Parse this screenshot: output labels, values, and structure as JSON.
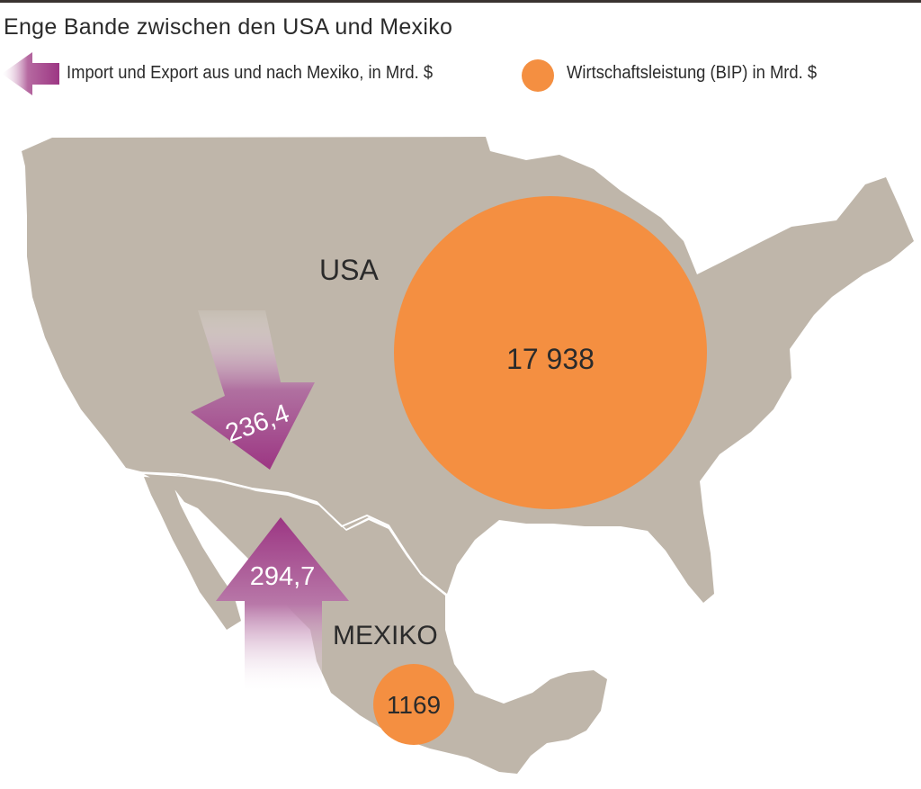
{
  "title": "Enge Bande zwischen den USA und Mexiko",
  "legend": {
    "trade_label": "Import und Export aus und nach Mexiko, in Mrd. $",
    "gdp_label": "Wirtschaftsleistung (BIP) in Mrd. $"
  },
  "countries": {
    "usa": {
      "name": "USA",
      "gdp": "17 938",
      "trade_flow": "236,4"
    },
    "mexico": {
      "name": "MEXIKO",
      "gdp": "1169",
      "trade_flow": "294,7"
    }
  },
  "colors": {
    "land": "#bfb6aa",
    "gdp_circle": "#f48f41",
    "trade_arrow": "#9c3683",
    "border": "#ffffff",
    "text": "#2b2b2b"
  }
}
